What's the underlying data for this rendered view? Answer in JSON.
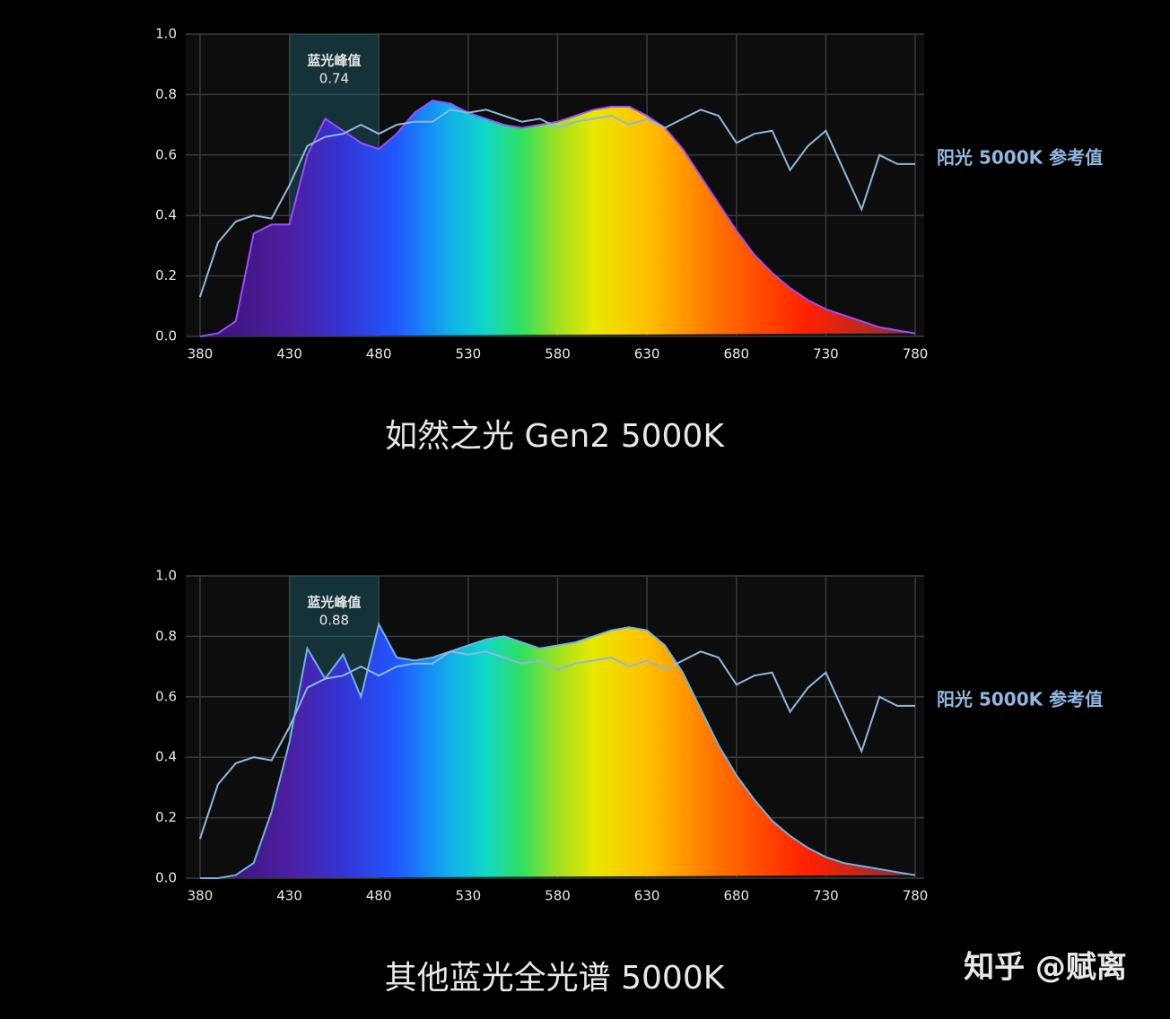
{
  "chart_data": [
    {
      "type": "area",
      "title": "如然之光 Gen2 5000K",
      "x": [
        380,
        390,
        400,
        410,
        420,
        430,
        440,
        450,
        460,
        470,
        480,
        490,
        500,
        510,
        520,
        530,
        540,
        550,
        560,
        570,
        580,
        590,
        600,
        610,
        620,
        630,
        640,
        650,
        660,
        670,
        680,
        690,
        700,
        710,
        720,
        730,
        740,
        750,
        760,
        770,
        780
      ],
      "series": [
        {
          "color": "#9a4dff",
          "values": [
            0.0,
            0.01,
            0.05,
            0.34,
            0.37,
            0.37,
            0.6,
            0.72,
            0.68,
            0.64,
            0.62,
            0.67,
            0.74,
            0.78,
            0.77,
            0.74,
            0.72,
            0.7,
            0.69,
            0.7,
            0.71,
            0.73,
            0.75,
            0.76,
            0.76,
            0.73,
            0.69,
            0.62,
            0.53,
            0.44,
            0.35,
            0.27,
            0.21,
            0.16,
            0.12,
            0.09,
            0.07,
            0.05,
            0.03,
            0.02,
            0.01
          ]
        },
        {
          "name": "阳光 5000K 参考值",
          "color": "#8fb8e0",
          "values": [
            0.13,
            0.31,
            0.38,
            0.4,
            0.39,
            0.5,
            0.63,
            0.66,
            0.67,
            0.7,
            0.67,
            0.7,
            0.71,
            0.71,
            0.75,
            0.74,
            0.75,
            0.73,
            0.71,
            0.72,
            0.69,
            0.71,
            0.72,
            0.73,
            0.7,
            0.72,
            0.69,
            0.72,
            0.75,
            0.73,
            0.64,
            0.67,
            0.68,
            0.55,
            0.63,
            0.68,
            0.55,
            0.42,
            0.6,
            0.57,
            0.57
          ]
        }
      ],
      "band": [
        430,
        480
      ],
      "band_label": "蓝光峰值",
      "band_value": 0.74,
      "xlim": [
        372,
        785
      ],
      "xticks": [
        380,
        430,
        480,
        530,
        580,
        630,
        680,
        730,
        780
      ],
      "ylim": [
        0,
        1
      ],
      "yticks": [
        {
          "value": 0,
          "label": "0.0"
        },
        0.2,
        0.4,
        0.6,
        0.8,
        {
          "value": 1,
          "label": "1.0"
        }
      ],
      "grid": true
    },
    {
      "type": "area",
      "title": "其他蓝光全光谱 5000K",
      "x": [
        380,
        390,
        400,
        410,
        420,
        430,
        440,
        450,
        460,
        470,
        480,
        490,
        500,
        510,
        520,
        530,
        540,
        550,
        560,
        570,
        580,
        590,
        600,
        610,
        620,
        630,
        640,
        650,
        660,
        670,
        680,
        690,
        700,
        710,
        720,
        730,
        740,
        750,
        760,
        770,
        780
      ],
      "series": [
        {
          "color": "#6fb3e6",
          "values": [
            0.0,
            0.0,
            0.01,
            0.05,
            0.22,
            0.45,
            0.76,
            0.66,
            0.74,
            0.6,
            0.84,
            0.73,
            0.72,
            0.73,
            0.75,
            0.77,
            0.79,
            0.8,
            0.78,
            0.76,
            0.77,
            0.78,
            0.8,
            0.82,
            0.83,
            0.82,
            0.77,
            0.68,
            0.56,
            0.44,
            0.34,
            0.26,
            0.19,
            0.14,
            0.1,
            0.07,
            0.05,
            0.04,
            0.03,
            0.02,
            0.01
          ]
        },
        {
          "name": "阳光 5000K 参考值",
          "color": "#8fb8e0",
          "values": [
            0.13,
            0.31,
            0.38,
            0.4,
            0.39,
            0.5,
            0.63,
            0.66,
            0.67,
            0.7,
            0.67,
            0.7,
            0.71,
            0.71,
            0.75,
            0.74,
            0.75,
            0.73,
            0.71,
            0.72,
            0.69,
            0.71,
            0.72,
            0.73,
            0.7,
            0.72,
            0.69,
            0.72,
            0.75,
            0.73,
            0.64,
            0.67,
            0.68,
            0.55,
            0.63,
            0.68,
            0.55,
            0.42,
            0.6,
            0.57,
            0.57
          ]
        }
      ],
      "band": [
        430,
        480
      ],
      "band_label": "蓝光峰值",
      "band_value": 0.88,
      "xlim": [
        372,
        785
      ],
      "xticks": [
        380,
        430,
        480,
        530,
        580,
        630,
        680,
        730,
        780
      ],
      "ylim": [
        0,
        1
      ],
      "yticks": [
        {
          "value": 0,
          "label": "0.0"
        },
        0.2,
        0.4,
        0.6,
        0.8,
        {
          "value": 1,
          "label": "1.0"
        }
      ],
      "grid": true
    }
  ],
  "watermark": "知乎 @赋离"
}
